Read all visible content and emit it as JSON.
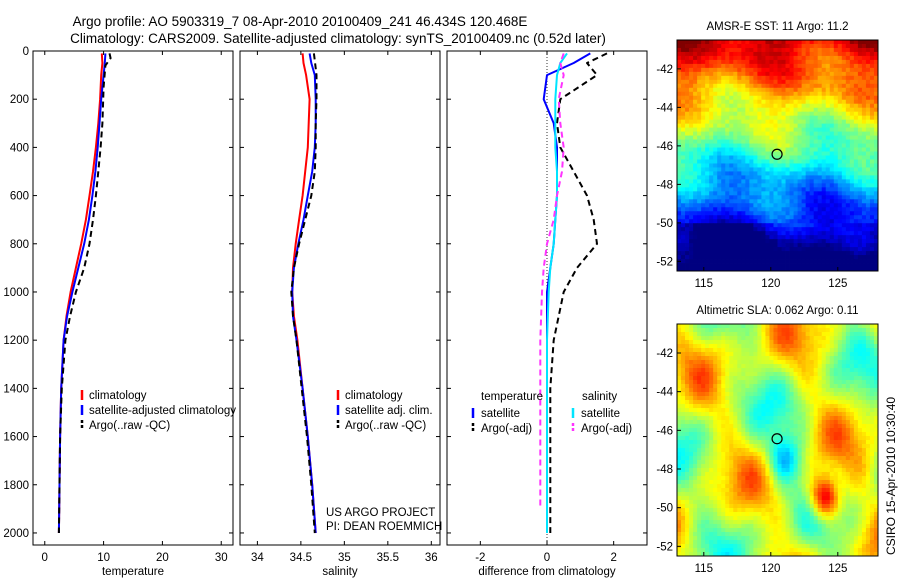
{
  "header": {
    "line1": "Argo profile: AO 5903319_7 08-Apr-2010 20100409_241 46.434S 120.468E",
    "line2": "Climatology: CARS2009. Satellite-adjusted climatology: synTS_20100409.nc (0.52d later)"
  },
  "colors": {
    "clim": "#ff0000",
    "sat": "#0000ff",
    "argo": "#000000",
    "sal_sat": "#00e5ff",
    "sal_argo": "#ff33ff"
  },
  "chart_data": [
    {
      "type": "line",
      "xlabel": "temperature",
      "ylabel": "",
      "xlim": [
        -2,
        32
      ],
      "ylim": [
        2050,
        0
      ],
      "xticks": [
        0,
        10,
        20,
        30
      ],
      "yticks": [
        0,
        200,
        400,
        600,
        800,
        1000,
        1200,
        1400,
        1600,
        1800,
        2000
      ],
      "legend": [
        "climatology",
        "satellite-adjusted climatology",
        "Argo(..raw -QC)"
      ],
      "series": [
        {
          "name": "climatology",
          "color": "#ff0000",
          "dash": "",
          "x": [
            9.7,
            9.8,
            9.6,
            9.4,
            9.1,
            8.7,
            8.2,
            7.6,
            7.0,
            6.2,
            5.3,
            4.4,
            3.7,
            3.2,
            2.8,
            2.6,
            2.5,
            2.4
          ],
          "y": [
            10,
            50,
            100,
            200,
            300,
            400,
            500,
            600,
            700,
            800,
            900,
            1000,
            1100,
            1200,
            1400,
            1600,
            1800,
            2000
          ]
        },
        {
          "name": "satellite-adjusted climatology",
          "color": "#0000ff",
          "dash": "",
          "x": [
            10.3,
            10.2,
            10.0,
            9.6,
            9.3,
            9.0,
            8.6,
            8.1,
            7.5,
            6.7,
            5.7,
            4.7,
            3.8,
            3.2,
            2.8,
            2.6,
            2.5,
            2.4
          ],
          "y": [
            10,
            50,
            100,
            200,
            300,
            400,
            500,
            600,
            700,
            800,
            900,
            1000,
            1100,
            1200,
            1400,
            1600,
            1800,
            2000
          ]
        },
        {
          "name": "Argo(..raw -QC)",
          "color": "#000000",
          "dash": "6,4",
          "x": [
            11.0,
            11.2,
            10.3,
            10.0,
            9.8,
            9.5,
            9.1,
            8.7,
            8.2,
            7.6,
            6.7,
            5.3,
            4.3,
            3.5,
            2.9,
            2.6,
            2.5,
            2.4
          ],
          "y": [
            10,
            30,
            60,
            150,
            300,
            400,
            500,
            600,
            700,
            800,
            900,
            1000,
            1100,
            1200,
            1400,
            1600,
            1800,
            2000
          ]
        }
      ]
    },
    {
      "type": "line",
      "xlabel": "salinity",
      "ylabel": "",
      "xlim": [
        33.8,
        36.1
      ],
      "ylim": [
        2050,
        0
      ],
      "xticks": [
        34,
        34.5,
        35,
        35.5,
        36
      ],
      "yticks": [
        0,
        200,
        400,
        600,
        800,
        1000,
        1200,
        1400,
        1600,
        1800,
        2000
      ],
      "legend": [
        "climatology",
        "satellite adj. clim.",
        "Argo(..raw -QC)"
      ],
      "series": [
        {
          "name": "climatology",
          "color": "#ff0000",
          "dash": "",
          "x": [
            34.52,
            34.53,
            34.56,
            34.6,
            34.59,
            34.58,
            34.55,
            34.52,
            34.48,
            34.44,
            34.41,
            34.4,
            34.42,
            34.46,
            34.52,
            34.58,
            34.63,
            34.67
          ],
          "y": [
            10,
            50,
            100,
            200,
            300,
            400,
            500,
            600,
            700,
            800,
            900,
            1000,
            1100,
            1200,
            1400,
            1600,
            1800,
            2000
          ]
        },
        {
          "name": "satellite adj. clim.",
          "color": "#0000ff",
          "dash": "",
          "x": [
            34.6,
            34.62,
            34.66,
            34.67,
            34.67,
            34.66,
            34.63,
            34.58,
            34.53,
            34.47,
            34.42,
            34.4,
            34.41,
            34.45,
            34.52,
            34.58,
            34.63,
            34.67
          ],
          "y": [
            10,
            50,
            100,
            200,
            300,
            400,
            500,
            600,
            700,
            800,
            900,
            1000,
            1100,
            1200,
            1400,
            1600,
            1800,
            2000
          ]
        },
        {
          "name": "Argo(..raw -QC)",
          "color": "#000000",
          "dash": "6,4",
          "x": [
            34.65,
            34.66,
            34.68,
            34.68,
            34.67,
            34.67,
            34.66,
            34.62,
            34.55,
            34.48,
            34.42,
            34.39,
            34.41,
            34.45,
            34.51,
            34.57,
            34.62,
            34.66
          ],
          "y": [
            10,
            40,
            100,
            200,
            300,
            400,
            500,
            600,
            700,
            800,
            900,
            1000,
            1100,
            1200,
            1400,
            1600,
            1800,
            2000
          ]
        }
      ]
    },
    {
      "type": "line",
      "xlabel": "difference from climatology",
      "ylabel": "",
      "xlim": [
        -3,
        3
      ],
      "ylim": [
        2050,
        0
      ],
      "xticks": [
        -2,
        0,
        2
      ],
      "yticks": [
        0,
        200,
        400,
        600,
        800,
        1000,
        1200,
        1400,
        1600,
        1800,
        2000
      ],
      "legend_headers": [
        "temperature",
        "salinity"
      ],
      "legend": [
        "satellite",
        "Argo(-adj)",
        "satellite",
        "Argo(-adj)"
      ],
      "series": [
        {
          "name": "satellite",
          "color": "#0000ff",
          "dash": "",
          "x": [
            1.3,
            0.8,
            0.0,
            -0.1,
            0.2,
            0.3,
            0.3,
            0.3,
            0.25,
            0.2,
            0.1,
            0.0,
            0.0,
            0.0,
            0.0,
            0.0
          ],
          "y": [
            10,
            50,
            100,
            200,
            300,
            400,
            500,
            600,
            700,
            800,
            900,
            1000,
            1200,
            1400,
            1600,
            2000
          ]
        },
        {
          "name": "Argo(-adj)",
          "color": "#000000",
          "dash": "6,4",
          "x": [
            1.8,
            1.2,
            1.5,
            0.4,
            0.3,
            0.4,
            0.8,
            1.2,
            1.4,
            1.5,
            0.9,
            0.5,
            0.2,
            0.1,
            0.1,
            0.1
          ],
          "y": [
            10,
            50,
            100,
            200,
            300,
            400,
            500,
            600,
            700,
            800,
            900,
            1000,
            1200,
            1400,
            1600,
            2000
          ]
        },
        {
          "name": "satellite",
          "color": "#00e5ff",
          "dash": "",
          "x": [
            0.6,
            0.4,
            0.3,
            0.25,
            0.25,
            0.25,
            0.3,
            0.3,
            0.25,
            0.2,
            0.1,
            0.05,
            0.0,
            0.0,
            0.0,
            0.0
          ],
          "y": [
            10,
            50,
            100,
            200,
            300,
            400,
            500,
            600,
            700,
            800,
            900,
            1000,
            1200,
            1400,
            1600,
            2000
          ]
        },
        {
          "name": "Argo(-adj)",
          "color": "#ff33ff",
          "dash": "6,4",
          "x": [
            0.5,
            0.4,
            0.5,
            0.35,
            0.4,
            0.5,
            0.45,
            0.3,
            0.2,
            0.0,
            -0.1,
            -0.15,
            -0.2,
            -0.2,
            -0.2,
            -0.2
          ],
          "y": [
            10,
            50,
            100,
            200,
            300,
            400,
            500,
            600,
            700,
            800,
            900,
            1000,
            1200,
            1400,
            1600,
            1900
          ]
        }
      ]
    },
    {
      "type": "heatmap",
      "title": "AMSR-E SST: 11 Argo: 11.2",
      "xlim": [
        113,
        128
      ],
      "ylim": [
        -52.5,
        -40.5
      ],
      "xticks": [
        115,
        120,
        125
      ],
      "yticks": [
        -42,
        -44,
        -46,
        -48,
        -50,
        -52
      ],
      "marker": {
        "lon": 120.468,
        "lat": -46.434
      }
    },
    {
      "type": "heatmap",
      "title": "Altimetric SLA: 0.062 Argo: 0.11",
      "xlim": [
        113,
        128
      ],
      "ylim": [
        -52.5,
        -40.5
      ],
      "xticks": [
        115,
        120,
        125
      ],
      "yticks": [
        -42,
        -44,
        -46,
        -48,
        -50,
        -52
      ],
      "marker": {
        "lon": 120.468,
        "lat": -46.434
      }
    }
  ],
  "annotations": {
    "project_line1": "US ARGO PROJECT",
    "project_line2": "PI: DEAN ROEMMICH",
    "stamp": "CSIRO 15-Apr-2010 10:30:40"
  }
}
